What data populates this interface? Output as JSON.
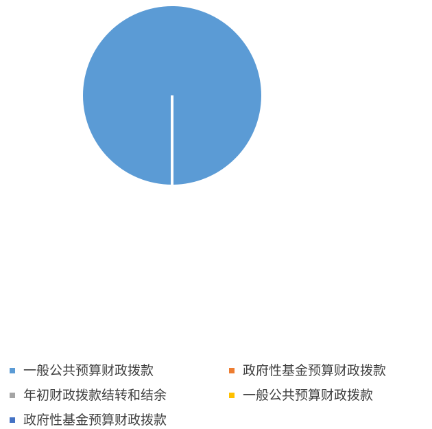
{
  "chart_data": {
    "type": "pie",
    "title": "",
    "categories": [
      "一般公共预算财政拨款",
      "政府性基金预算财政拨款",
      "年初财政拨款结转和结余",
      "一般公共预算财政拨款",
      "政府性基金预算财政拨款"
    ],
    "values": [
      100,
      0,
      0,
      0,
      0
    ],
    "colors": [
      "#5B9BD5",
      "#ED7D31",
      "#A5A5A5",
      "#FFC000",
      "#4472C4"
    ],
    "legend_position": "bottom"
  }
}
